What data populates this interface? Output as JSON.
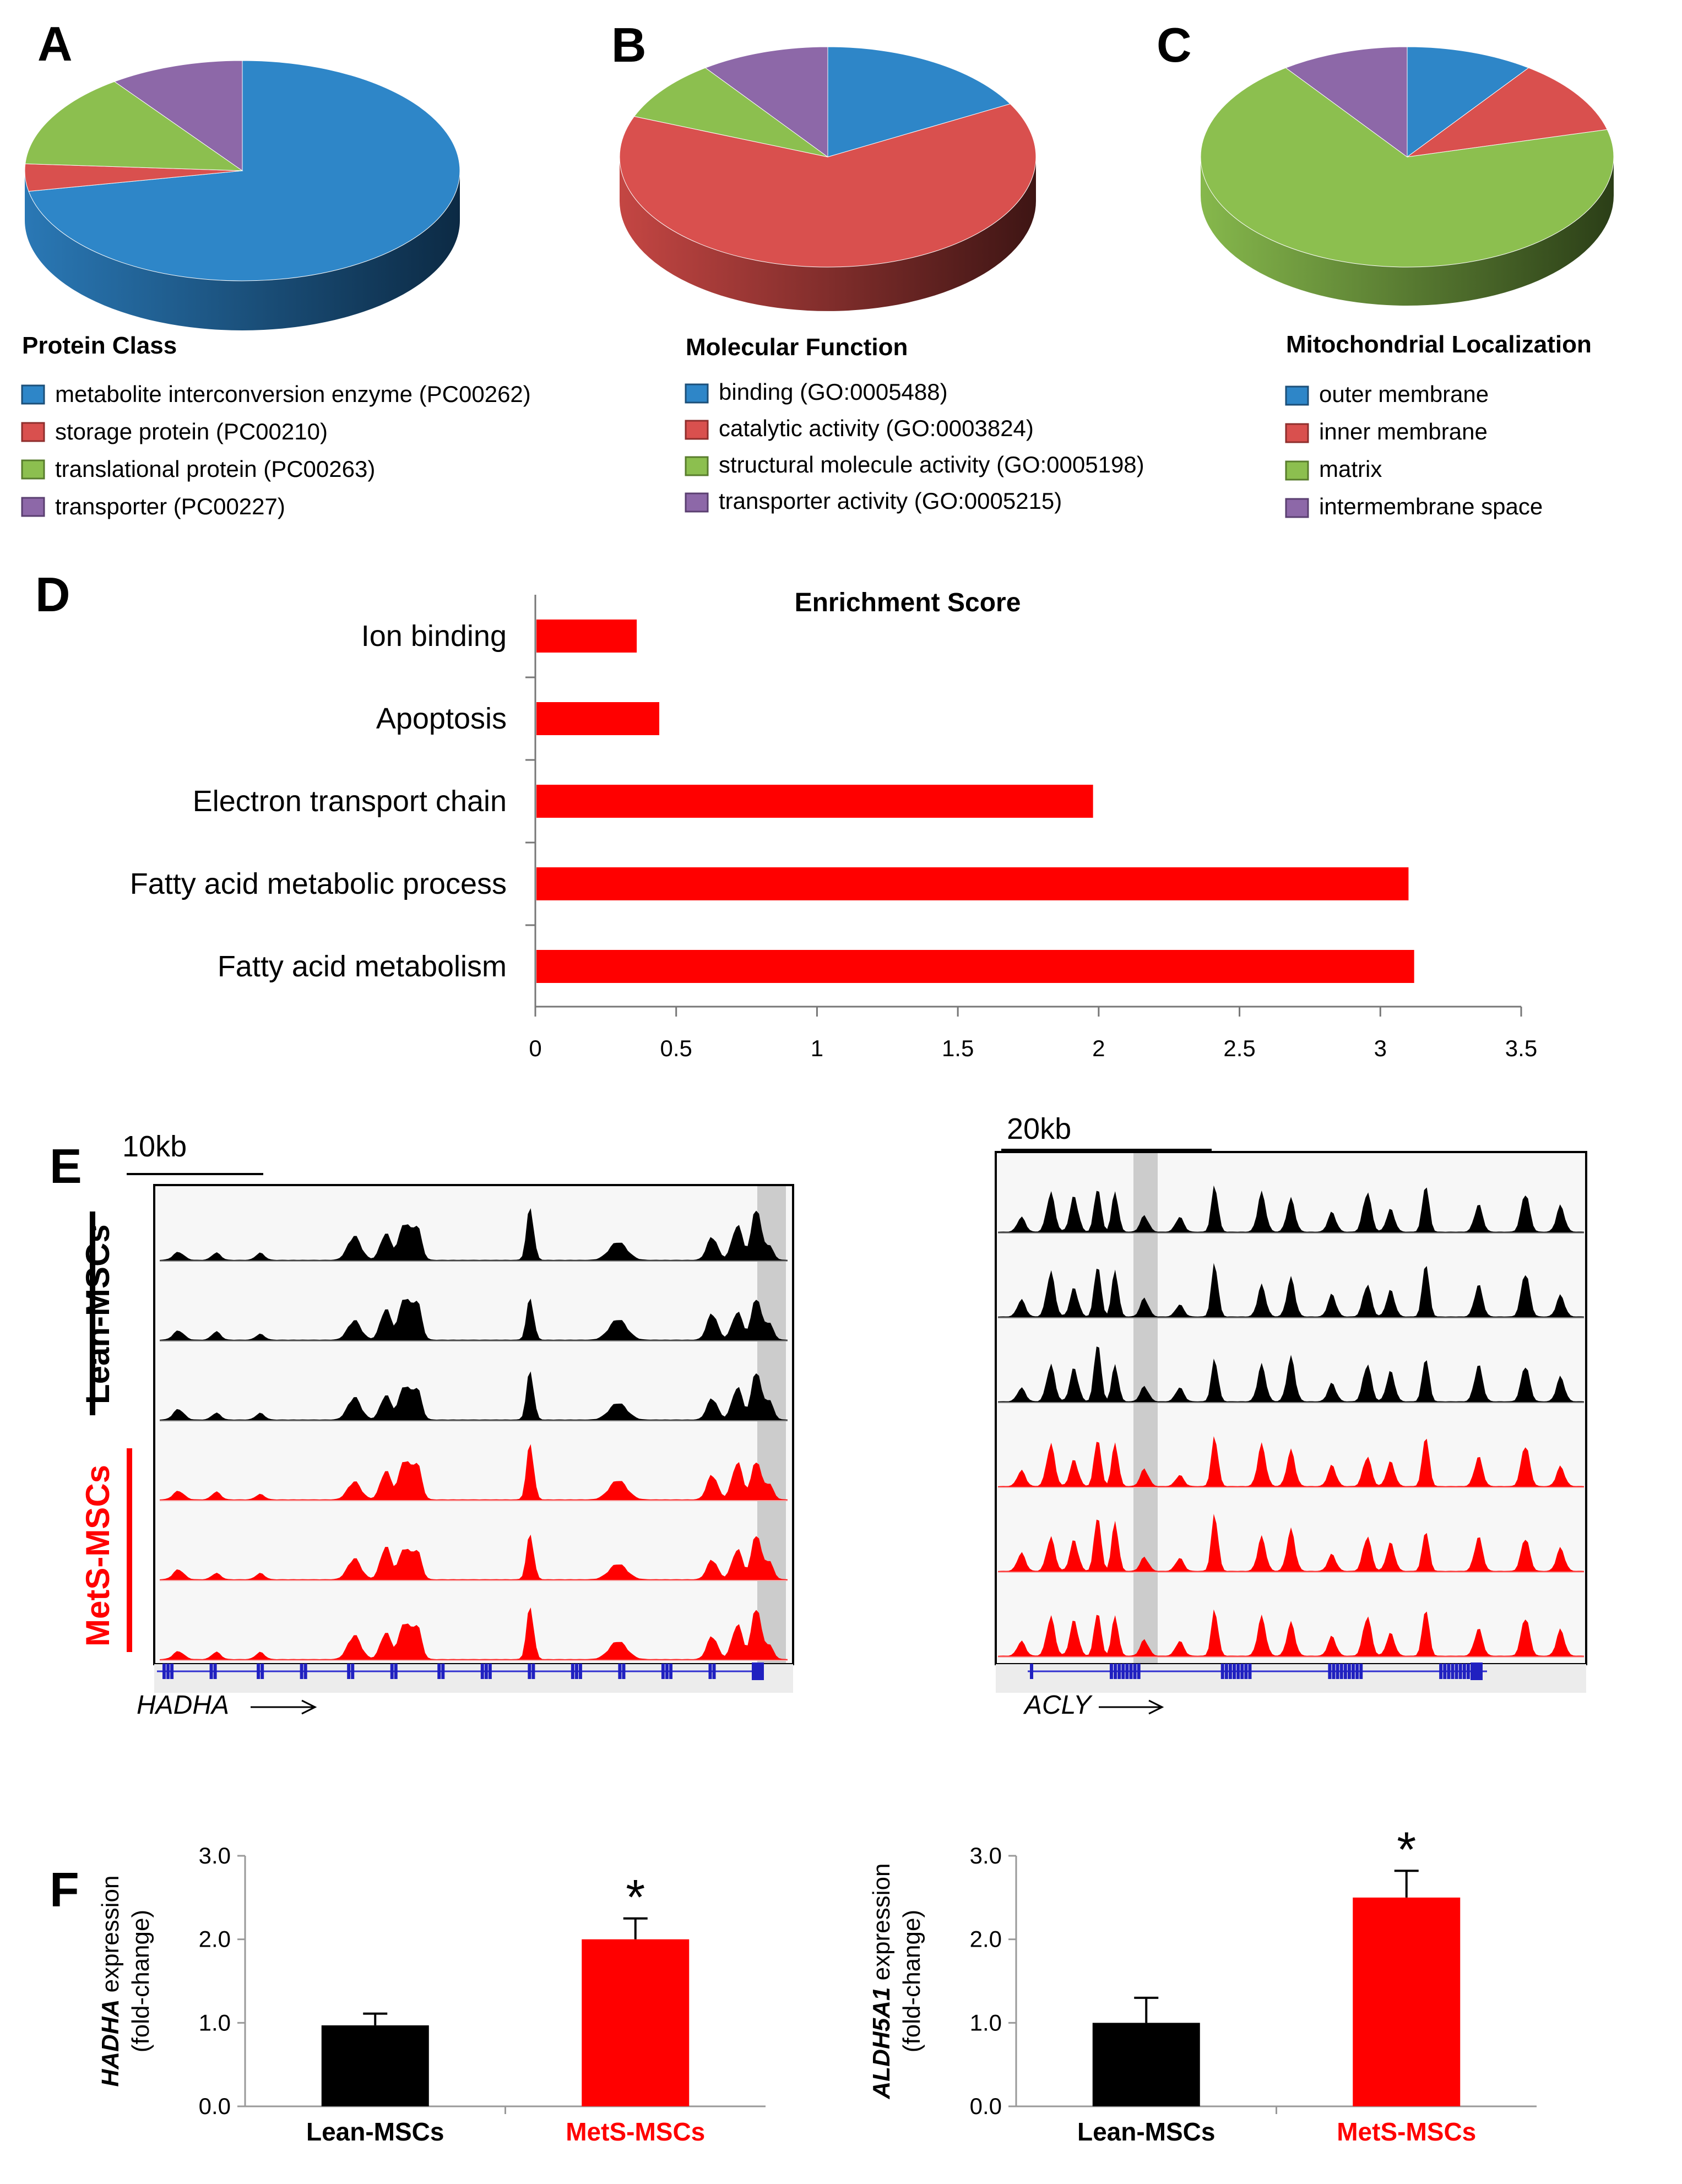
{
  "panels": {
    "A": "A",
    "B": "B",
    "C": "C",
    "D": "D",
    "E": "E",
    "F": "F"
  },
  "colors": {
    "blue": "#2e86c8",
    "red": "#d9504e",
    "green": "#8cbf4f",
    "purple": "#8d68a8",
    "bar_red": "#ff0000",
    "black": "#000000"
  },
  "chart_data": [
    {
      "type": "pie",
      "id": "A",
      "title": "Protein Class",
      "slices": [
        {
          "label": "metabolite interconversion enzyme (PC00262)",
          "value": 72,
          "color": "#2e86c8"
        },
        {
          "label": "storage protein (PC00210)",
          "value": 4,
          "color": "#d9504e"
        },
        {
          "label": "translational protein (PC00263)",
          "value": 14,
          "color": "#8cbf4f"
        },
        {
          "label": "transporter (PC00227)",
          "value": 10,
          "color": "#8d68a8"
        }
      ]
    },
    {
      "type": "pie",
      "id": "B",
      "title": "Molecular Function",
      "slices": [
        {
          "label": "binding (GO:0005488)",
          "value": 17,
          "color": "#2e86c8"
        },
        {
          "label": "catalytic activity (GO:0003824)",
          "value": 64,
          "color": "#d9504e"
        },
        {
          "label": "structural molecule activity (GO:0005198)",
          "value": 9,
          "color": "#8cbf4f"
        },
        {
          "label": "transporter activity (GO:0005215)",
          "value": 10,
          "color": "#8d68a8"
        }
      ]
    },
    {
      "type": "pie",
      "id": "C",
      "title": "Mitochondrial Localization",
      "slices": [
        {
          "label": "outer membrane",
          "value": 10,
          "color": "#2e86c8"
        },
        {
          "label": "inner membrane",
          "value": 11,
          "color": "#d9504e"
        },
        {
          "label": "matrix",
          "value": 69,
          "color": "#8cbf4f"
        },
        {
          "label": "intermembrane space",
          "value": 10,
          "color": "#8d68a8"
        }
      ]
    },
    {
      "type": "bar",
      "id": "D",
      "orientation": "horizontal",
      "title": "Enrichment Score",
      "categories": [
        "Ion binding",
        "Apoptosis",
        "Electron transport chain",
        "Fatty acid metabolic process",
        "Fatty acid metabolism"
      ],
      "values": [
        0.36,
        0.44,
        1.98,
        3.1,
        3.12
      ],
      "xlim": [
        0,
        3.5
      ],
      "xticks": [
        "0",
        "0.5",
        "1",
        "1.5",
        "2",
        "2.5",
        "3",
        "3.5"
      ]
    },
    {
      "type": "bar",
      "id": "F1",
      "ylabel_gene": "HADHA",
      "ylabel_rest": "expression",
      "ylabel_sub": "(fold-change)",
      "categories": [
        "Lean-MSCs",
        "MetS-MSCs"
      ],
      "values": [
        0.97,
        2.0
      ],
      "errors": [
        0.14,
        0.25
      ],
      "ylim": [
        0,
        3
      ],
      "yticks": [
        "0.0",
        "1.0",
        "2.0",
        "3.0"
      ],
      "significance": "*"
    },
    {
      "type": "bar",
      "id": "F2",
      "ylabel_gene": "ALDH5A1",
      "ylabel_rest": "expression",
      "ylabel_sub": "(fold-change)",
      "categories": [
        "Lean-MSCs",
        "MetS-MSCs"
      ],
      "values": [
        1.0,
        2.5
      ],
      "errors": [
        0.3,
        0.32
      ],
      "ylim": [
        0,
        3
      ],
      "yticks": [
        "0.0",
        "1.0",
        "2.0",
        "3.0"
      ],
      "significance": "*"
    }
  ],
  "tracks": {
    "left": {
      "scale": "10kb",
      "gene": "HADHA",
      "group_lean": "Lean-MSCs",
      "group_mets": "MetS-MSCs"
    },
    "right": {
      "scale": "20kb",
      "gene": "ACLY"
    }
  }
}
